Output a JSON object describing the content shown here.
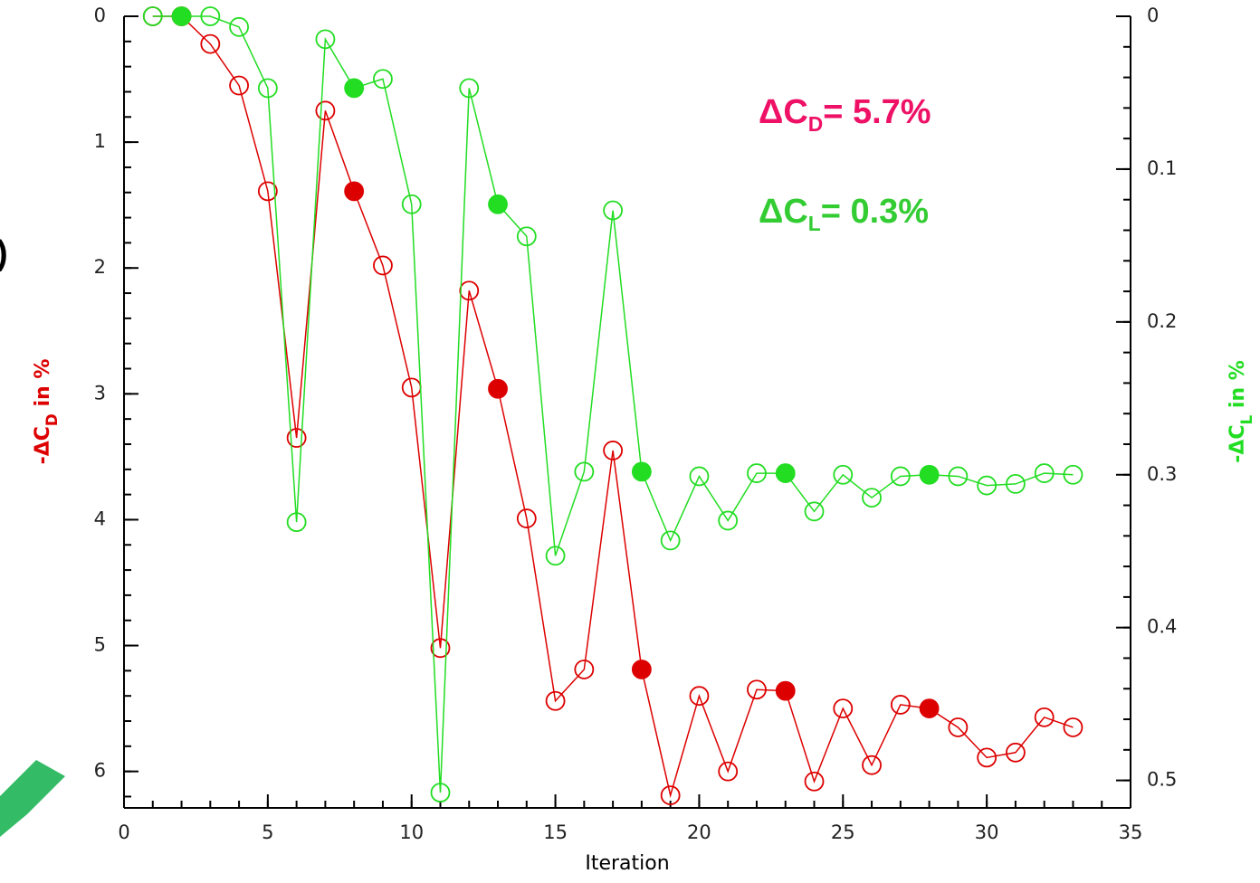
{
  "chart_data": {
    "type": "line",
    "x_label": "Iteration",
    "y_label": {
      "main": "-ΔC",
      "sub": "D",
      "rest": " in %"
    },
    "y2_label": {
      "main": "-ΔC",
      "sub": "L",
      "rest": " in %"
    },
    "annotations": [
      {
        "main": "ΔC",
        "sub": "D",
        "rest": "= 5.7%",
        "color": "#ee1166"
      },
      {
        "main": "ΔC",
        "sub": "L",
        "rest": "= 0.3%",
        "color": "#33cc33"
      }
    ],
    "fragment": ")",
    "x": [
      1,
      2,
      3,
      4,
      5,
      6,
      7,
      8,
      9,
      10,
      11,
      12,
      13,
      14,
      15,
      16,
      17,
      18,
      19,
      20,
      21,
      22,
      23,
      24,
      25,
      26,
      27,
      28,
      29,
      30,
      31,
      32,
      33
    ],
    "series": [
      {
        "name": "-ΔCD",
        "color": "#dd0000",
        "axis": "y",
        "values": [
          0,
          0,
          0.22,
          0.55,
          1.39,
          3.35,
          0.75,
          1.39,
          1.98,
          2.95,
          5.02,
          2.18,
          2.96,
          3.99,
          5.44,
          5.19,
          3.45,
          5.19,
          6.19,
          5.4,
          6.0,
          5.35,
          5.36,
          6.08,
          5.5,
          5.95,
          5.47,
          5.5,
          5.65,
          5.89,
          5.85,
          5.57,
          5.65
        ]
      },
      {
        "name": "-ΔCL",
        "color": "#22dd22",
        "axis": "y2",
        "values": [
          0,
          0,
          0,
          0.007,
          0.047,
          0.331,
          0.015,
          0.047,
          0.041,
          0.123,
          0.508,
          0.047,
          0.123,
          0.144,
          0.353,
          0.298,
          0.127,
          0.298,
          0.343,
          0.301,
          0.33,
          0.299,
          0.299,
          0.324,
          0.3,
          0.315,
          0.301,
          0.3,
          0.301,
          0.307,
          0.306,
          0.299,
          0.3
        ]
      }
    ],
    "filled_x": [
      2,
      8,
      13,
      18,
      23,
      28
    ],
    "xlim": [
      0,
      35
    ],
    "xticks": [
      0,
      5,
      10,
      15,
      20,
      25,
      30,
      35
    ],
    "xminor": 1,
    "ylim": [
      0,
      6.29
    ],
    "yticks": [
      0,
      1,
      2,
      3,
      4,
      5,
      6
    ],
    "yminor": 0.2,
    "y2lim": [
      0,
      0.518
    ],
    "y2ticks": [
      {
        "value": 0,
        "label": "0"
      },
      {
        "value": 0.1,
        "label": "0.1"
      },
      {
        "value": 0.2,
        "label": "0.2"
      },
      {
        "value": 0.3,
        "label": "0.3"
      },
      {
        "value": 0.4,
        "label": "0.4"
      },
      {
        "value": 0.5,
        "label": "0.5"
      }
    ],
    "y2minor": 0.02,
    "y_inverted": true
  }
}
